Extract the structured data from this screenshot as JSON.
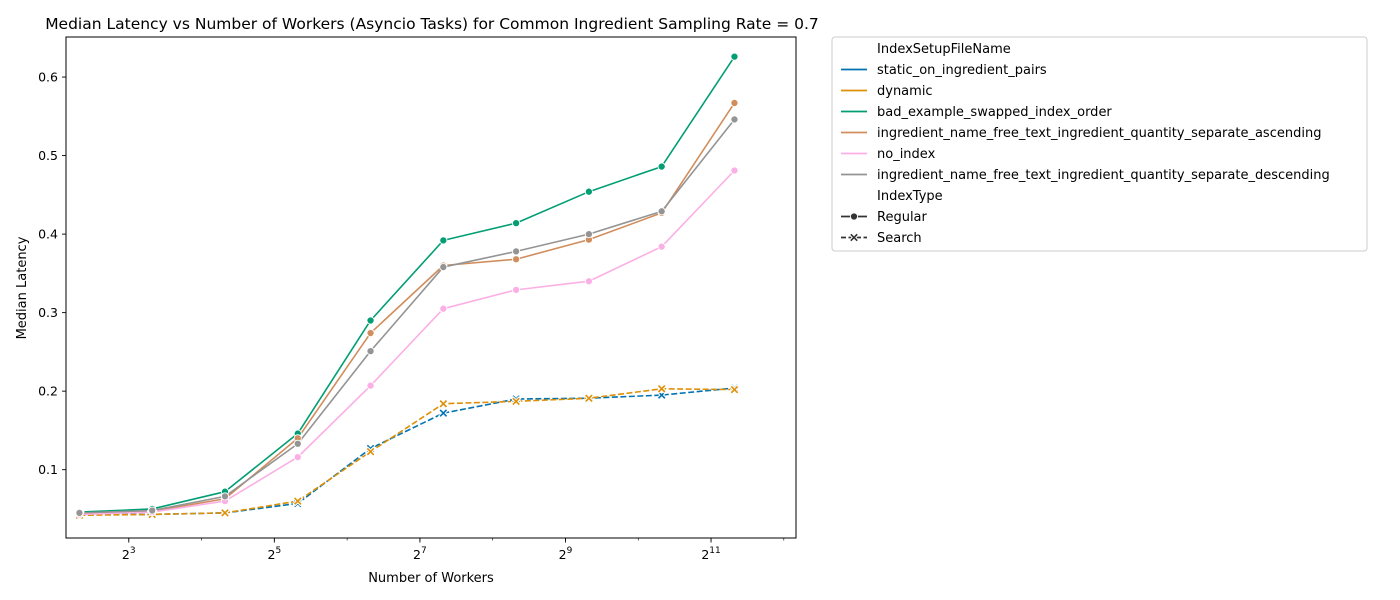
{
  "chart_data": {
    "type": "line",
    "title": "Median Latency vs Number of Workers (Asyncio Tasks) for Common Ingredient Sampling Rate = 0.7",
    "xlabel": "Number of Workers",
    "ylabel": "Median Latency",
    "x_scale": "log2",
    "xlim": [
      4.4,
      4600
    ],
    "ylim": [
      0.013,
      0.651
    ],
    "x_ticks": [
      {
        "value": 8,
        "base": "2",
        "exp": "3"
      },
      {
        "value": 32,
        "base": "2",
        "exp": "5"
      },
      {
        "value": 128,
        "base": "2",
        "exp": "7"
      },
      {
        "value": 512,
        "base": "2",
        "exp": "9"
      },
      {
        "value": 2048,
        "base": "2",
        "exp": "11"
      }
    ],
    "y_ticks": [
      "0.1",
      "0.2",
      "0.3",
      "0.4",
      "0.5",
      "0.6"
    ],
    "x": [
      5,
      10,
      20,
      40,
      80,
      160,
      320,
      640,
      1280,
      2560
    ],
    "legend": {
      "placement": "outside-right",
      "hue_title": "IndexSetupFileName",
      "style_title": "IndexType",
      "styles": [
        {
          "name": "Regular",
          "marker": "circle",
          "dash": "solid"
        },
        {
          "name": "Search",
          "marker": "x",
          "dash": "dashed"
        }
      ]
    },
    "series": [
      {
        "name": "static_on_ingredient_pairs",
        "color": "#0173b2",
        "style": "Search",
        "values": [
          0.043,
          0.043,
          0.045,
          0.057,
          0.127,
          0.172,
          0.19,
          0.191,
          0.195,
          0.204
        ]
      },
      {
        "name": "dynamic",
        "color": "#de8f05",
        "style": "Search",
        "values": [
          0.042,
          0.043,
          0.045,
          0.06,
          0.123,
          0.184,
          0.187,
          0.191,
          0.203,
          0.202
        ]
      },
      {
        "name": "bad_example_swapped_index_order",
        "color": "#029e73",
        "style": "Regular",
        "values": [
          0.046,
          0.05,
          0.072,
          0.146,
          0.29,
          0.392,
          0.414,
          0.454,
          0.486,
          0.626
        ]
      },
      {
        "name": "ingredient_name_free_text_ingredient_quantity_separate_ascending",
        "color": "#d18d5c",
        "style": "Regular",
        "values": [
          0.044,
          0.047,
          0.063,
          0.14,
          0.274,
          0.36,
          0.368,
          0.393,
          0.427,
          0.567
        ]
      },
      {
        "name": "no_index",
        "color": "#fbafe4",
        "style": "Regular",
        "values": [
          0.043,
          0.046,
          0.06,
          0.116,
          0.207,
          0.305,
          0.329,
          0.34,
          0.384,
          0.481
        ]
      },
      {
        "name": "ingredient_name_free_text_ingredient_quantity_separate_descending",
        "color": "#949494",
        "style": "Regular",
        "values": [
          0.045,
          0.048,
          0.066,
          0.133,
          0.251,
          0.358,
          0.378,
          0.4,
          0.429,
          0.546
        ]
      }
    ]
  }
}
